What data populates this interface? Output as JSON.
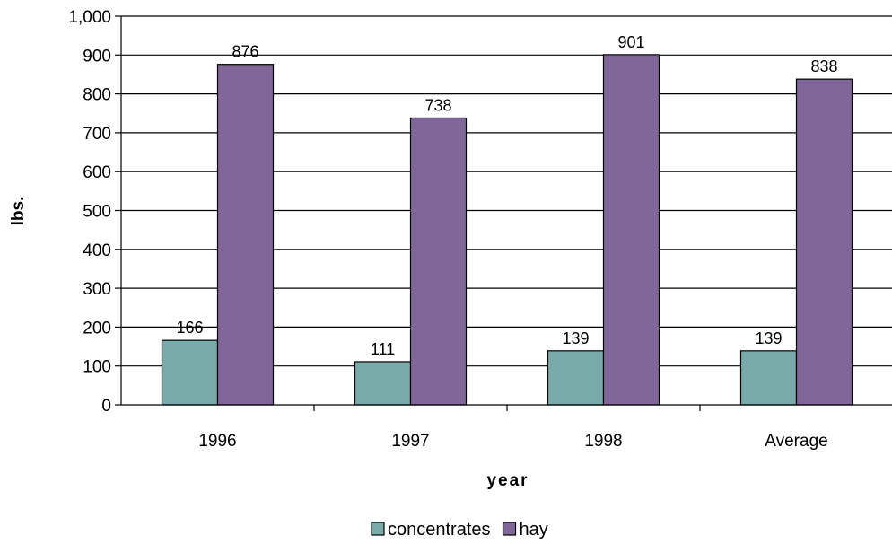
{
  "chart_data": {
    "type": "bar",
    "categories": [
      "1996",
      "1997",
      "1998",
      "Average"
    ],
    "series": [
      {
        "name": "concentrates",
        "values": [
          166,
          111,
          139,
          139
        ],
        "color": "#77AAA8"
      },
      {
        "name": "hay",
        "values": [
          876,
          738,
          901,
          838
        ],
        "color": "#806699"
      }
    ],
    "xlabel": "year",
    "ylabel": "lbs.",
    "ylim": [
      0,
      1000
    ],
    "yticks": [
      0,
      100,
      200,
      300,
      400,
      500,
      600,
      700,
      800,
      900,
      1000
    ],
    "ytick_labels": [
      "0",
      "100",
      "200",
      "300",
      "400",
      "500",
      "600",
      "700",
      "800",
      "900",
      "1,000"
    ],
    "grid": true,
    "legend_position": "bottom-center"
  }
}
